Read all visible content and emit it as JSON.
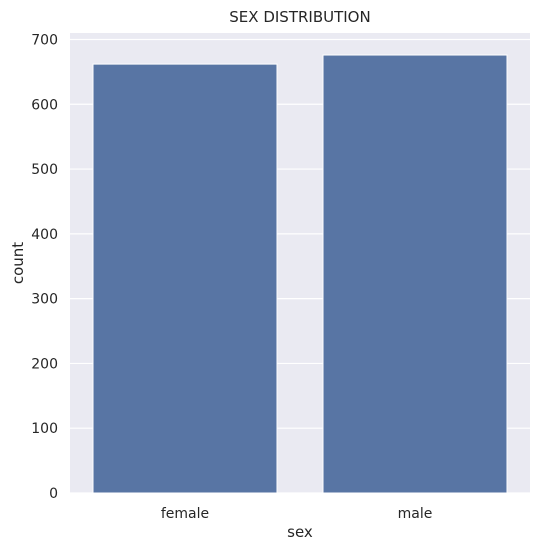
{
  "chart_data": {
    "type": "bar",
    "title": "SEX DISTRIBUTION",
    "xlabel": "sex",
    "ylabel": "count",
    "categories": [
      "female",
      "male"
    ],
    "values": [
      662,
      676
    ],
    "ylim": [
      0,
      710
    ],
    "yticks": [
      0,
      100,
      200,
      300,
      400,
      500,
      600,
      700
    ],
    "grid": true,
    "colors": {
      "bar": "#5875a4",
      "plot_background": "#eaeaf2",
      "grid": "#ffffff",
      "text": "#262626"
    }
  }
}
